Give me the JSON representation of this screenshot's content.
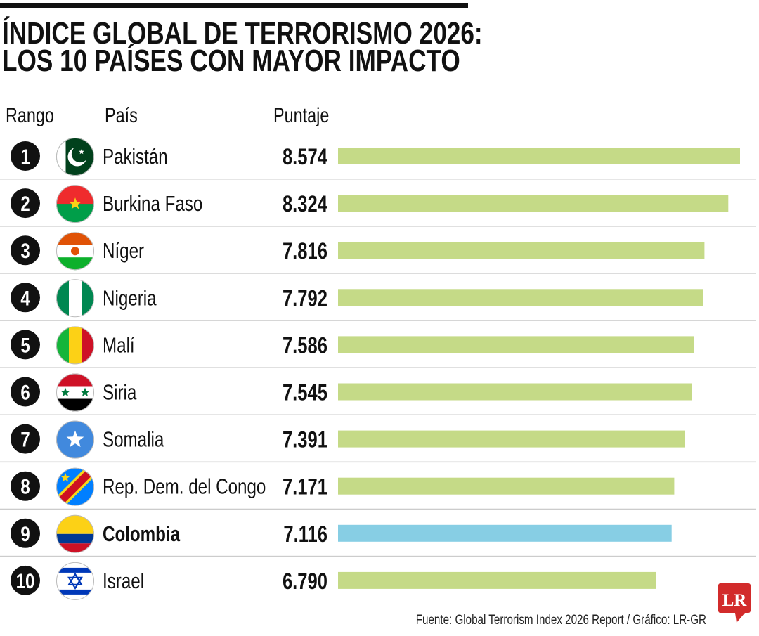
{
  "title_line1": "ÍNDICE GLOBAL DE TERRORISMO 2026:",
  "title_line2": "LOS 10 PAÍSES CON MAYOR IMPACTO",
  "headers": {
    "rank": "Rango",
    "country": "País",
    "score": "Puntaje"
  },
  "source": "Fuente: Global Terrorism Index 2026 Report / Gráfico: LR-GR",
  "logo_text": "LR",
  "colors": {
    "bar": "#C5DA87",
    "highlight_bar": "#87CEE4",
    "logo": "#D22B2B"
  },
  "chart_data": {
    "type": "bar",
    "orientation": "horizontal",
    "xlim": [
      0,
      8.574
    ],
    "grid": false,
    "rows": [
      {
        "rank": "1",
        "country": "Pakistán",
        "score": "8.574",
        "value": 8.574,
        "flag": "pakistan-flag"
      },
      {
        "rank": "2",
        "country": "Burkina Faso",
        "score": "8.324",
        "value": 8.324,
        "flag": "burkina-faso-flag"
      },
      {
        "rank": "3",
        "country": "Níger",
        "score": "7.816",
        "value": 7.816,
        "flag": "niger-flag"
      },
      {
        "rank": "4",
        "country": "Nigeria",
        "score": "7.792",
        "value": 7.792,
        "flag": "nigeria-flag"
      },
      {
        "rank": "5",
        "country": "Malí",
        "score": "7.586",
        "value": 7.586,
        "flag": "mali-flag"
      },
      {
        "rank": "6",
        "country": "Siria",
        "score": "7.545",
        "value": 7.545,
        "flag": "syria-flag"
      },
      {
        "rank": "7",
        "country": "Somalia",
        "score": "7.391",
        "value": 7.391,
        "flag": "somalia-flag"
      },
      {
        "rank": "8",
        "country": "Rep. Dem. del Congo",
        "score": "7.171",
        "value": 7.171,
        "flag": "dr-congo-flag"
      },
      {
        "rank": "9",
        "country": "Colombia",
        "score": "7.116",
        "value": 7.116,
        "flag": "colombia-flag",
        "highlight": true
      },
      {
        "rank": "10",
        "country": "Israel",
        "score": "6.790",
        "value": 6.79,
        "flag": "israel-flag"
      }
    ]
  }
}
